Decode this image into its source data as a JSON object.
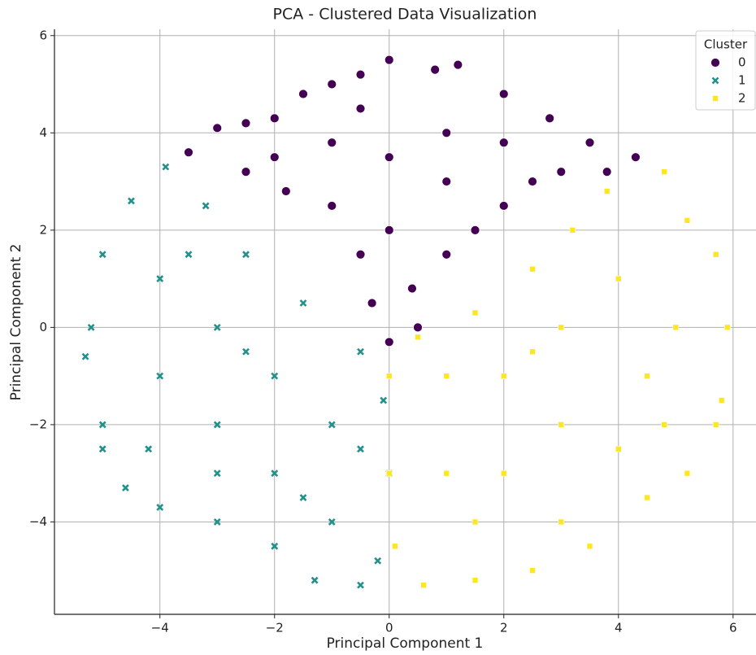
{
  "chart_data": {
    "type": "scatter",
    "title": "PCA - Clustered Data Visualization",
    "x_label": "Principal Component 1",
    "y_label": "Principal Component 2",
    "legend_title": "Cluster",
    "legend_position": "upper right",
    "grid": true,
    "xlim": [
      -5.84,
      6.4
    ],
    "ylim": [
      -5.9,
      6.13
    ],
    "xticks": [
      {
        "value": -4,
        "label": "−4"
      },
      {
        "value": -2,
        "label": "−2"
      },
      0,
      2,
      4,
      6
    ],
    "yticks": [
      {
        "value": -4,
        "label": "−4"
      },
      {
        "value": -2,
        "label": "−2"
      },
      0,
      2,
      4,
      6
    ],
    "series": [
      {
        "name": "0",
        "color": "#440154",
        "marker": "circle",
        "x": [
          -3.5,
          -3,
          -2.5,
          -2,
          -1.5,
          -1,
          -0.5,
          0,
          0.8,
          1.2,
          2,
          2.8,
          3.5,
          4.3,
          -2.5,
          -1.8,
          -1,
          -0.5,
          -0.3,
          0,
          0.4,
          1,
          1.5,
          2,
          2.5,
          3,
          3.8,
          -1,
          0,
          1,
          2,
          0,
          -0.5,
          1,
          -2,
          0.5
        ],
        "y": [
          3.6,
          4.1,
          4.2,
          4.3,
          4.8,
          5.0,
          5.2,
          5.5,
          5.3,
          5.4,
          4.8,
          4.3,
          3.8,
          3.5,
          3.2,
          2.8,
          2.5,
          1.5,
          0.5,
          -0.3,
          0.8,
          1.5,
          2,
          2.5,
          3,
          3.2,
          3.2,
          3.8,
          3.5,
          4,
          3.8,
          2,
          4.5,
          3,
          3.5,
          0
        ]
      },
      {
        "name": "1",
        "color": "#21918c",
        "marker": "x",
        "x": [
          -3.9,
          -4.5,
          -5,
          -5.2,
          -5.3,
          -5,
          -5,
          -4.6,
          -4,
          -3,
          -2,
          -1.3,
          -0.5,
          -0.2,
          0,
          -0.1,
          -0.5,
          -1.5,
          -2.5,
          -3.2,
          -4,
          -4,
          -3,
          -2,
          -2,
          -1,
          -1,
          -3,
          -4.2,
          -3,
          -1.5,
          -2.5,
          -3.5,
          -0.5
        ],
        "y": [
          3.3,
          2.6,
          1.5,
          0,
          -0.6,
          -2,
          -2.5,
          -3.3,
          -3.7,
          -4,
          -4.5,
          -5.2,
          -5.3,
          -4.8,
          -3,
          -1.5,
          -0.5,
          0.5,
          1.5,
          2.5,
          1,
          -1,
          -2,
          -1,
          -3,
          -2,
          -4,
          0,
          -2.5,
          -3,
          -3.5,
          -0.5,
          1.5,
          -2.5
        ]
      },
      {
        "name": "2",
        "color": "#fde725",
        "marker": "square",
        "x": [
          0,
          0.5,
          1.5,
          2.5,
          3.2,
          3.8,
          4.8,
          5.2,
          5.7,
          5.9,
          5.8,
          5.7,
          5.2,
          4.5,
          3.5,
          2.5,
          1.5,
          0.6,
          0.1,
          0,
          1,
          2,
          3,
          4,
          4.5,
          3,
          2,
          1,
          4,
          5,
          3,
          1.5,
          2.5,
          4.8
        ],
        "y": [
          -1,
          -0.2,
          0.3,
          1.2,
          2,
          2.8,
          3.2,
          2.2,
          1.5,
          0,
          -1.5,
          -2,
          -3,
          -3.5,
          -4.5,
          -5,
          -5.2,
          -5.3,
          -4.5,
          -3,
          -1,
          -1,
          0,
          1,
          -1,
          -2,
          -3,
          -3,
          -2.5,
          0,
          -4,
          -4,
          -0.5,
          -2
        ]
      }
    ]
  }
}
